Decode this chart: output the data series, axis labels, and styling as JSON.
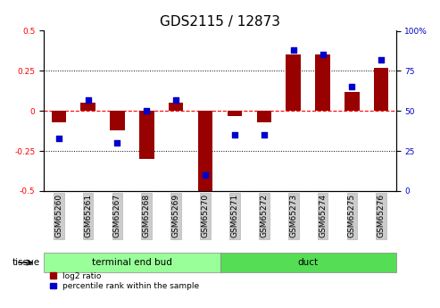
{
  "title": "GDS2115 / 12873",
  "samples": [
    "GSM65260",
    "GSM65261",
    "GSM65267",
    "GSM65268",
    "GSM65269",
    "GSM65270",
    "GSM65271",
    "GSM65272",
    "GSM65273",
    "GSM65274",
    "GSM65275",
    "GSM65276"
  ],
  "log2_ratio": [
    -0.07,
    0.05,
    -0.12,
    -0.3,
    0.05,
    -0.52,
    -0.03,
    -0.07,
    0.35,
    0.35,
    0.12,
    0.27
  ],
  "percentile": [
    33,
    57,
    30,
    50,
    57,
    10,
    35,
    35,
    88,
    85,
    65,
    82
  ],
  "bar_color": "#990000",
  "dot_color": "#0000cc",
  "ylim_left": [
    -0.5,
    0.5
  ],
  "ylim_right": [
    0,
    100
  ],
  "yticks_left": [
    -0.5,
    -0.25,
    0,
    0.25,
    0.5
  ],
  "yticks_right": [
    0,
    25,
    50,
    75,
    100
  ],
  "tissue_groups": [
    {
      "label": "terminal end bud",
      "start": 0,
      "end": 6,
      "color": "#99ff99"
    },
    {
      "label": "duct",
      "start": 6,
      "end": 12,
      "color": "#55dd55"
    }
  ],
  "tissue_label": "tissue",
  "legend_items": [
    {
      "label": "log2 ratio",
      "color": "#990000"
    },
    {
      "label": "percentile rank within the sample",
      "color": "#0000cc"
    }
  ],
  "background_color": "#ffffff",
  "bar_width": 0.5,
  "dot_size": 22,
  "title_fontsize": 11,
  "tick_fontsize": 6.5,
  "label_fontsize": 7.5,
  "legend_fontsize": 6.5
}
